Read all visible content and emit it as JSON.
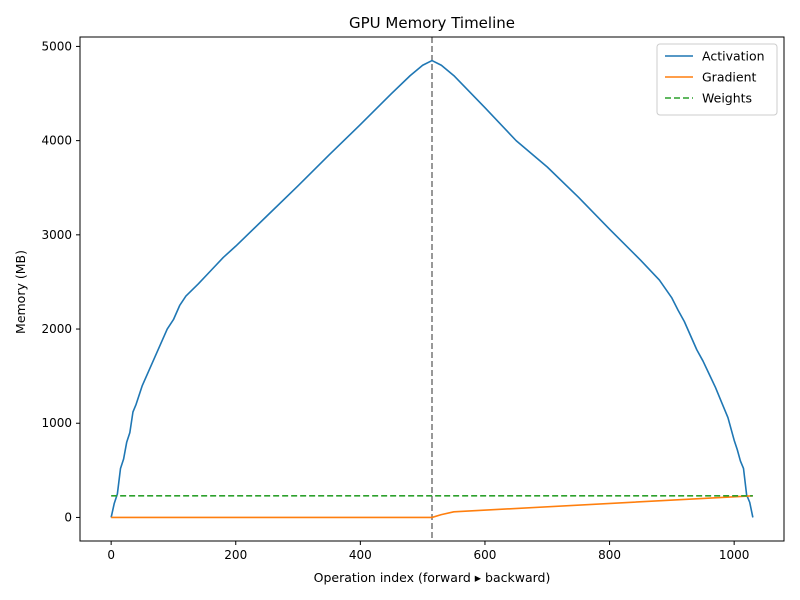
{
  "chart_data": {
    "type": "line",
    "title": "GPU Memory Timeline",
    "xlabel": "Operation index (forward ▸ backward)",
    "ylabel": "Memory (MB)",
    "xlim": [
      -50,
      1080
    ],
    "ylim": [
      -250,
      5100
    ],
    "xticks": [
      0,
      200,
      400,
      600,
      800,
      1000
    ],
    "yticks": [
      0,
      1000,
      2000,
      3000,
      4000,
      5000
    ],
    "grid": false,
    "legend_position": "top-right",
    "marker_line": {
      "x": 515,
      "color": "#7f7f7f",
      "style": "dashed"
    },
    "series": [
      {
        "name": "Activation",
        "color": "#1f77b4",
        "style": "solid",
        "x": [
          0,
          5,
          10,
          15,
          20,
          25,
          30,
          35,
          40,
          50,
          60,
          70,
          80,
          90,
          100,
          110,
          120,
          140,
          160,
          180,
          200,
          250,
          300,
          350,
          400,
          450,
          480,
          500,
          515,
          530,
          550,
          600,
          650,
          700,
          750,
          800,
          850,
          880,
          900,
          910,
          920,
          930,
          940,
          950,
          960,
          970,
          980,
          990,
          1000,
          1005,
          1010,
          1015,
          1020,
          1025,
          1030
        ],
        "y": [
          0,
          150,
          250,
          520,
          620,
          800,
          900,
          1120,
          1200,
          1400,
          1550,
          1700,
          1850,
          2000,
          2100,
          2250,
          2350,
          2480,
          2620,
          2760,
          2880,
          3200,
          3520,
          3850,
          4170,
          4500,
          4690,
          4800,
          4850,
          4800,
          4690,
          4350,
          4000,
          3720,
          3400,
          3060,
          2730,
          2520,
          2330,
          2200,
          2080,
          1930,
          1780,
          1660,
          1520,
          1380,
          1220,
          1060,
          820,
          720,
          600,
          520,
          240,
          160,
          0
        ]
      },
      {
        "name": "Gradient",
        "color": "#ff7f0e",
        "style": "solid",
        "x": [
          0,
          515,
          530,
          550,
          1030
        ],
        "y": [
          0,
          0,
          30,
          60,
          230
        ]
      },
      {
        "name": "Weights",
        "color": "#2ca02c",
        "style": "dashed",
        "x": [
          0,
          1030
        ],
        "y": [
          230,
          230
        ]
      }
    ]
  }
}
